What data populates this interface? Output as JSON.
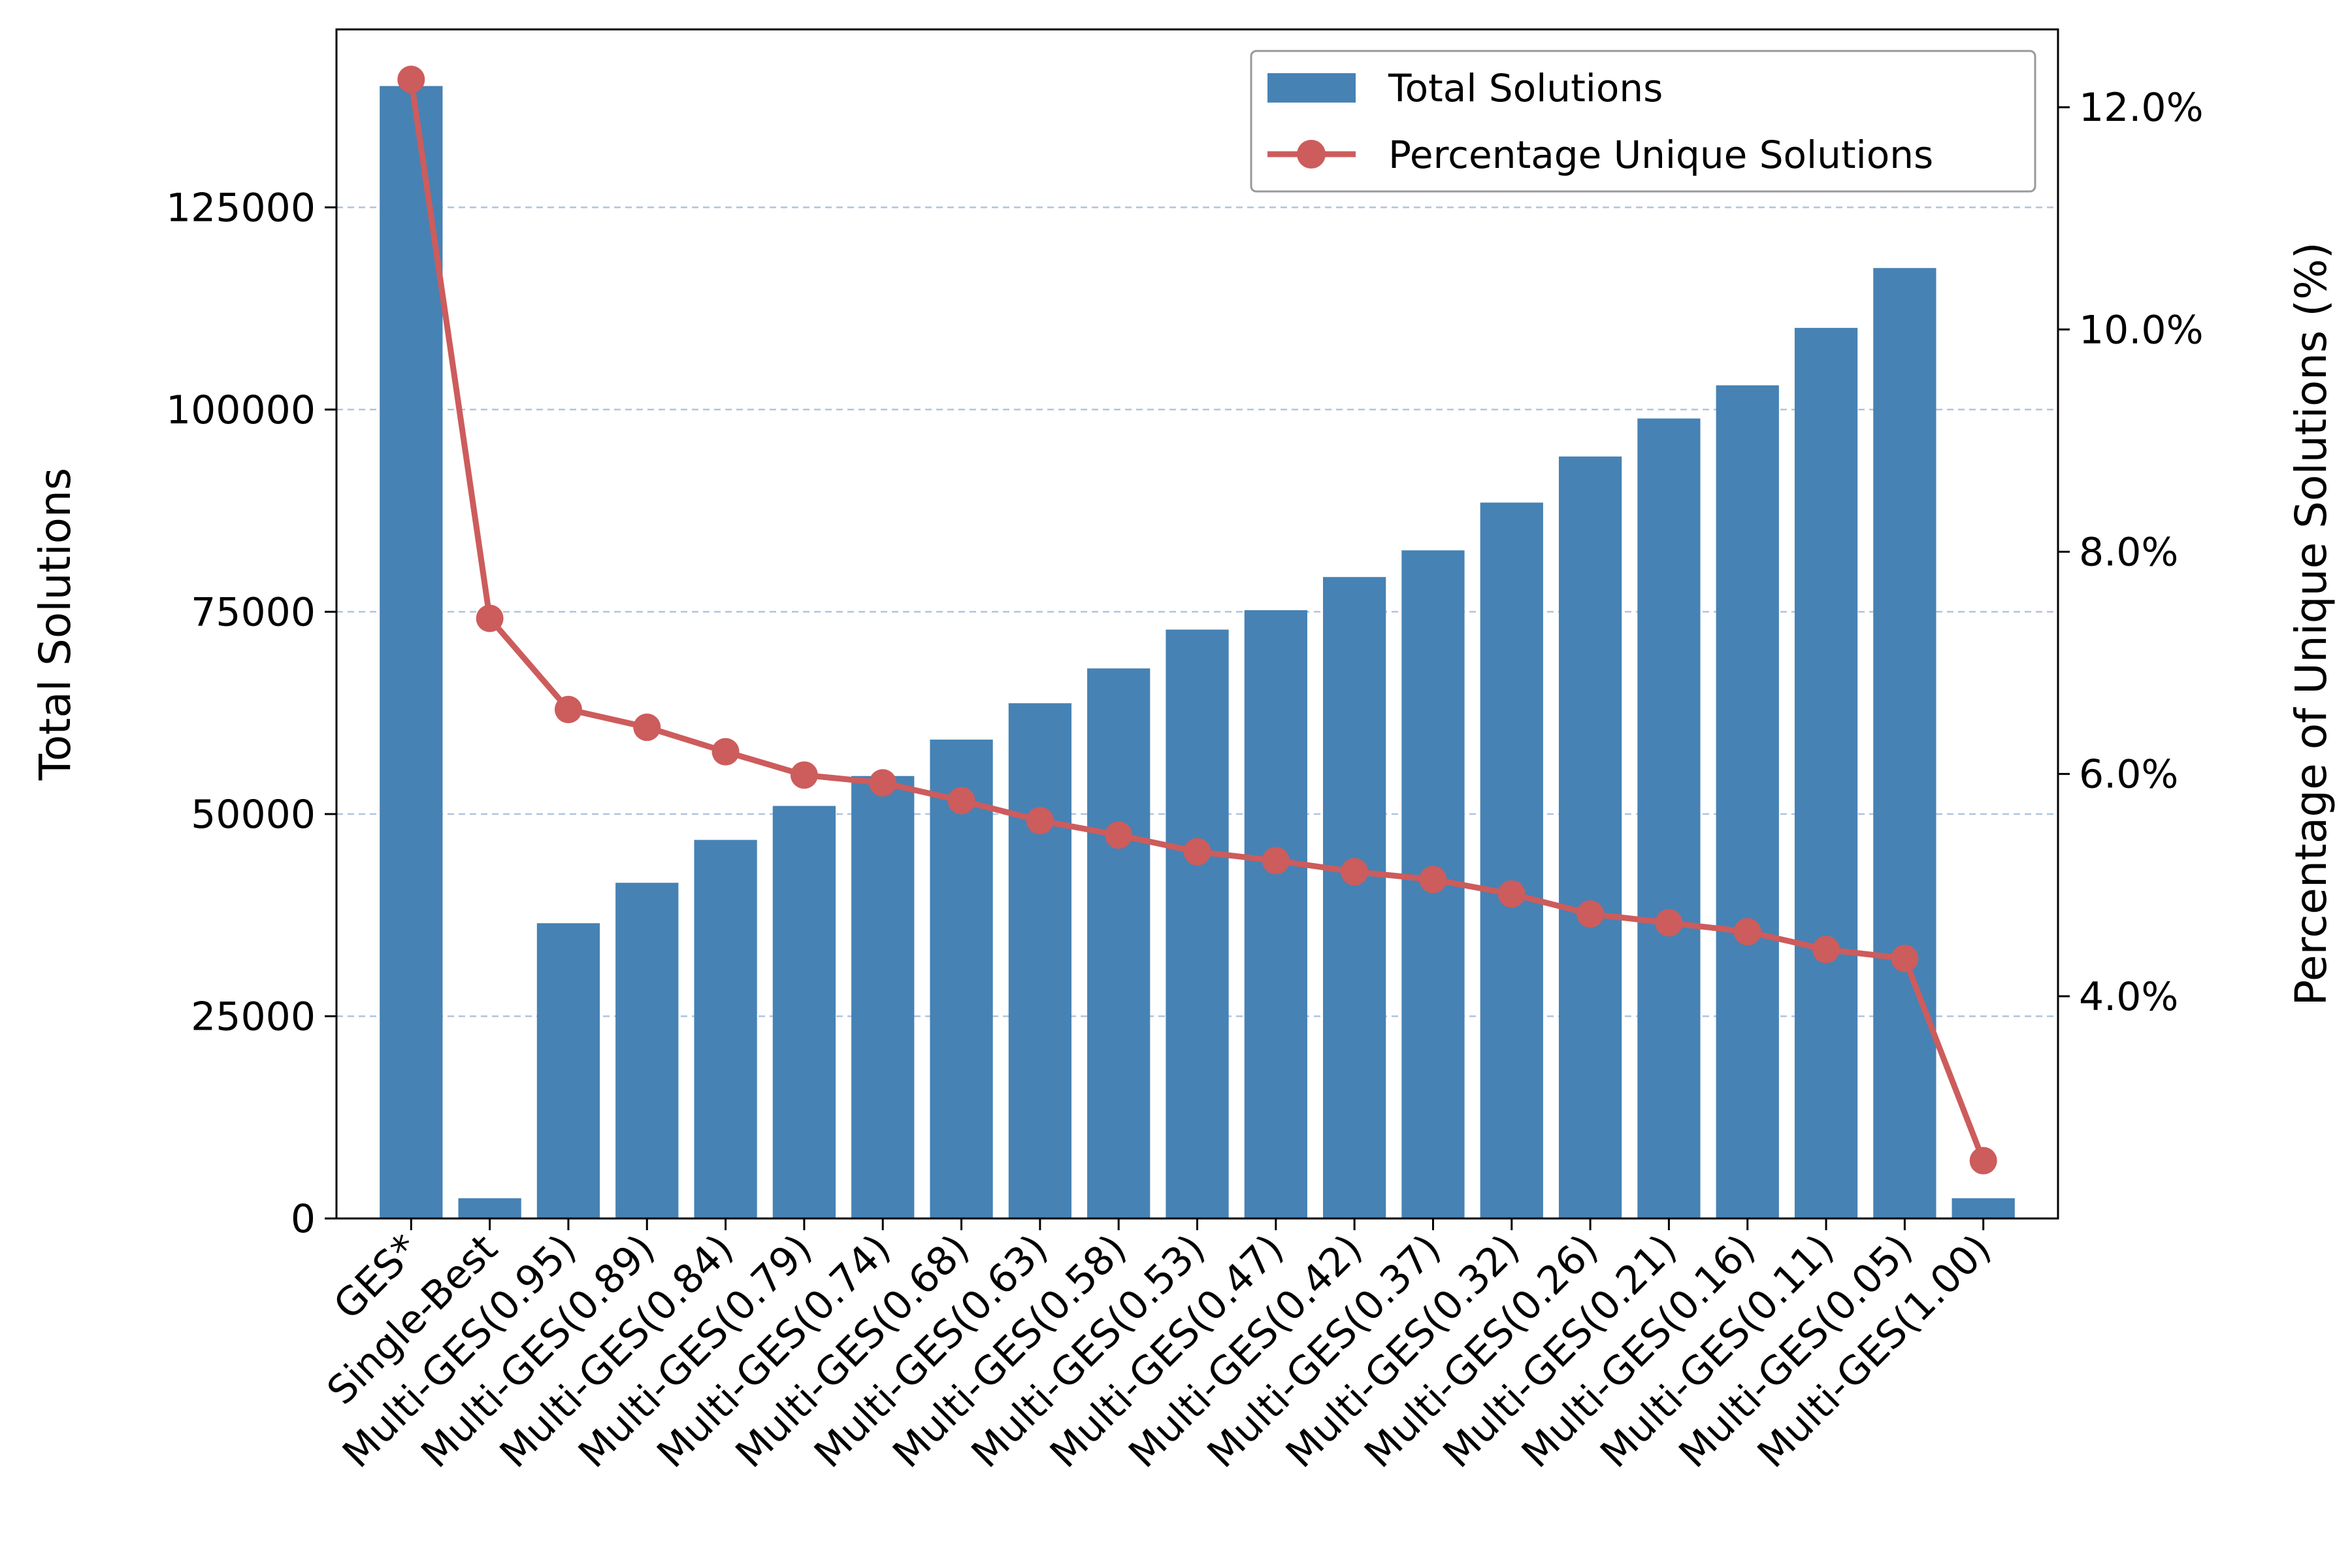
{
  "chart_data": {
    "type": "bar",
    "categories": [
      "GES*",
      "Single-Best",
      "Multi-GES(0.95)",
      "Multi-GES(0.89)",
      "Multi-GES(0.84)",
      "Multi-GES(0.79)",
      "Multi-GES(0.74)",
      "Multi-GES(0.68)",
      "Multi-GES(0.63)",
      "Multi-GES(0.58)",
      "Multi-GES(0.53)",
      "Multi-GES(0.47)",
      "Multi-GES(0.42)",
      "Multi-GES(0.37)",
      "Multi-GES(0.32)",
      "Multi-GES(0.26)",
      "Multi-GES(0.21)",
      "Multi-GES(0.16)",
      "Multi-GES(0.11)",
      "Multi-GES(0.05)",
      "Multi-GES(1.00)"
    ],
    "series": [
      {
        "name": "Total Solutions",
        "type": "bar",
        "axis": "left",
        "color": "#4682b4",
        "values": [
          140000,
          2500,
          36500,
          41500,
          46800,
          51000,
          54700,
          59200,
          63700,
          68000,
          72800,
          75200,
          79300,
          82600,
          88500,
          94200,
          98900,
          103000,
          110100,
          117500,
          2500
        ]
      },
      {
        "name": "Percentage Unique Solutions",
        "type": "line",
        "axis": "right",
        "color": "#cd5c5c",
        "values": [
          12.25,
          7.4,
          6.58,
          6.42,
          6.2,
          5.99,
          5.92,
          5.76,
          5.58,
          5.45,
          5.3,
          5.22,
          5.12,
          5.05,
          4.92,
          4.74,
          4.66,
          4.58,
          4.42,
          4.34,
          2.52
        ]
      }
    ],
    "ylabel": "Total Solutions",
    "y2label": "Percentage of Unique Solutions (%)",
    "ylim": [
      0,
      147000
    ],
    "yticks": [
      0,
      25000,
      50000,
      75000,
      100000,
      125000
    ],
    "y2lim": [
      2.0,
      12.7
    ],
    "y2ticks": [
      4.0,
      6.0,
      8.0,
      10.0,
      12.0
    ],
    "y2tick_labels": [
      "4.0%",
      "6.0%",
      "8.0%",
      "10.0%",
      "12.0%"
    ],
    "grid": "horizontal dashed",
    "legend_position": "top-right"
  }
}
